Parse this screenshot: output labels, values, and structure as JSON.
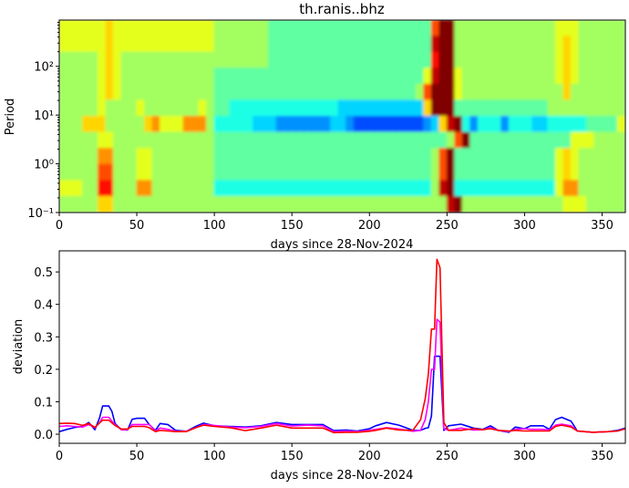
{
  "chart_data": [
    {
      "type": "heatmap",
      "title": "th.ranis..bhz",
      "xlabel": "days since 28-Nov-2024",
      "ylabel": "Period",
      "xlim": [
        0,
        365
      ],
      "ylim": [
        0.1,
        891
      ],
      "yscale": "log",
      "colormap": "jet",
      "xticks": [
        0,
        50,
        100,
        150,
        200,
        250,
        300,
        350
      ],
      "xtick_labels": [
        "0",
        "50",
        "100",
        "150",
        "200",
        "250",
        "300",
        "350"
      ],
      "ytick_labels": [
        "10⁻¹",
        "10⁰",
        "10¹",
        "10²"
      ],
      "bin_days": 5,
      "levels_note_hex": "0-f",
      "rows_top_to_bottom": [
        "999999a99999999999998888888777777777777777777777cff88888888888889998888888",
        "999999a99999999999998888888777777777777777777777eff88888888888889a98888888",
        "888889a98888888888888888888777777777777777777777dff88888888888889a98888888",
        "888889a98888888888887777777777777777777777777779eff98888888888889a98888888",
        "888889a9888888888888777777777777777777777777778cfff98888888888888a88888888",
        "88888988889888888898776666666666666655555555555afff77777777777788888888888",
        "888aaa88888ab999bbb866666555444444455433333333345aef646664666556666677779aa",
        "888889988888888888887777777777777777777777777777778cf77777777777779998888888",
        "88888bb888998888888877777777777777777777777777778cf77777777777779a98888888",
        "88888cc888998888888877777777777777777777777777778cf77777777777779a98888888",
        "99988dd888bb8888888866666666666666666666666666668ef66666666666669bb8888888",
        "88888aa8888888888888888888888888888888888888888888ef88888888888889998888888"
      ]
    },
    {
      "type": "line",
      "xlabel": "days since 28-Nov-2024",
      "ylabel": "deviation",
      "xlim": [
        0,
        365
      ],
      "ylim": [
        -0.028,
        0.565
      ],
      "xticks": [
        0,
        50,
        100,
        150,
        200,
        250,
        300,
        350
      ],
      "xtick_labels": [
        "0",
        "50",
        "100",
        "150",
        "200",
        "250",
        "300",
        "350"
      ],
      "yticks": [
        0.0,
        0.1,
        0.2,
        0.3,
        0.4,
        0.5
      ],
      "ytick_labels": [
        "0.0",
        "0.1",
        "0.2",
        "0.3",
        "0.4",
        "0.5"
      ],
      "x": [
        0,
        5,
        10,
        15,
        19,
        23,
        26,
        28,
        32,
        34,
        36,
        40,
        44,
        47,
        50,
        55,
        58,
        62,
        65,
        70,
        75,
        82,
        88,
        93,
        100,
        110,
        120,
        130,
        140,
        150,
        160,
        170,
        177,
        185,
        192,
        200,
        204,
        211,
        219,
        228,
        233,
        236,
        238,
        240,
        242,
        243.5,
        245.5,
        248,
        251,
        259,
        267,
        273,
        278,
        283,
        290,
        294,
        300,
        304,
        312,
        316,
        320,
        324,
        330,
        334,
        344,
        354,
        360,
        365
      ],
      "series": [
        {
          "color": "#0000ff",
          "values": [
            0.008,
            0.015,
            0.021,
            0.024,
            0.036,
            0.014,
            0.05,
            0.087,
            0.087,
            0.07,
            0.033,
            0.014,
            0.013,
            0.046,
            0.049,
            0.049,
            0.03,
            0.012,
            0.033,
            0.03,
            0.012,
            0.009,
            0.024,
            0.034,
            0.026,
            0.024,
            0.022,
            0.026,
            0.036,
            0.03,
            0.03,
            0.03,
            0.011,
            0.013,
            0.01,
            0.017,
            0.026,
            0.036,
            0.028,
            0.012,
            0.012,
            0.018,
            0.02,
            0.056,
            0.24,
            0.24,
            0.24,
            0.012,
            0.026,
            0.031,
            0.019,
            0.015,
            0.026,
            0.012,
            0.006,
            0.022,
            0.017,
            0.026,
            0.026,
            0.015,
            0.045,
            0.052,
            0.04,
            0.01,
            0.006,
            0.008,
            0.012,
            0.019
          ]
        },
        {
          "color": "#ff00ff",
          "values": [
            0.024,
            0.026,
            0.024,
            0.022,
            0.03,
            0.02,
            0.035,
            0.052,
            0.052,
            0.04,
            0.03,
            0.014,
            0.014,
            0.03,
            0.03,
            0.03,
            0.03,
            0.01,
            0.019,
            0.015,
            0.009,
            0.009,
            0.02,
            0.03,
            0.027,
            0.022,
            0.02,
            0.024,
            0.033,
            0.025,
            0.028,
            0.026,
            0.008,
            0.01,
            0.008,
            0.012,
            0.015,
            0.02,
            0.016,
            0.009,
            0.012,
            0.045,
            0.1,
            0.2,
            0.2,
            0.354,
            0.345,
            0.017,
            0.012,
            0.019,
            0.013,
            0.014,
            0.02,
            0.012,
            0.008,
            0.015,
            0.017,
            0.015,
            0.015,
            0.013,
            0.028,
            0.031,
            0.026,
            0.01,
            0.006,
            0.008,
            0.01,
            0.017
          ]
        },
        {
          "color": "#ff0000",
          "values": [
            0.033,
            0.034,
            0.033,
            0.027,
            0.033,
            0.021,
            0.035,
            0.043,
            0.043,
            0.035,
            0.027,
            0.016,
            0.016,
            0.024,
            0.024,
            0.024,
            0.02,
            0.008,
            0.012,
            0.01,
            0.008,
            0.008,
            0.02,
            0.028,
            0.024,
            0.02,
            0.011,
            0.019,
            0.028,
            0.019,
            0.019,
            0.019,
            0.005,
            0.006,
            0.006,
            0.009,
            0.012,
            0.019,
            0.013,
            0.012,
            0.045,
            0.11,
            0.185,
            0.324,
            0.324,
            0.539,
            0.513,
            0.036,
            0.012,
            0.012,
            0.017,
            0.014,
            0.017,
            0.012,
            0.01,
            0.012,
            0.01,
            0.01,
            0.01,
            0.01,
            0.024,
            0.028,
            0.022,
            0.01,
            0.006,
            0.008,
            0.01,
            0.017
          ]
        }
      ]
    }
  ]
}
